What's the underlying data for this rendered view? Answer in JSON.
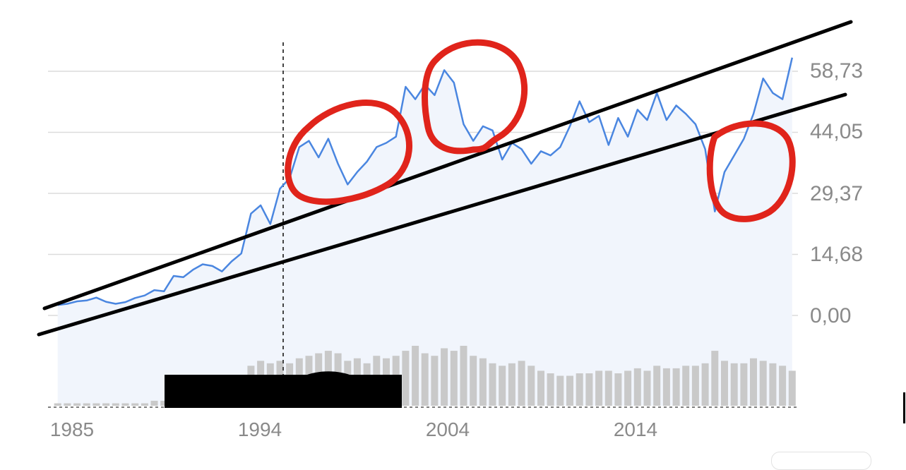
{
  "chart_data": {
    "type": "line",
    "title": "",
    "xlabel": "",
    "ylabel": "",
    "xlim": [
      1984.5,
      2023.3
    ],
    "ylim": [
      0,
      58.73
    ],
    "y_ticks": [
      "58,73",
      "44,05",
      "29,37",
      "14,68",
      "0,00"
    ],
    "y_tick_values": [
      58.73,
      44.05,
      29.37,
      14.68,
      0.0
    ],
    "x_ticks": [
      "1985",
      "1994",
      "2004",
      "2014"
    ],
    "x_tick_values": [
      1985,
      1994,
      2004,
      2014
    ],
    "grid": "horizontal",
    "series": [
      {
        "color": "#4a86e0",
        "x": [
          1985,
          1985.5,
          1986,
          1986.5,
          1987,
          1987.5,
          1988,
          1988.5,
          1989,
          1989.5,
          1990,
          1990.5,
          1991,
          1991.5,
          1992,
          1992.5,
          1993,
          1993.5,
          1994,
          1994.5,
          1995,
          1995.5,
          1996,
          1996.5,
          1997,
          1997.5,
          1998,
          1998.5,
          1999,
          1999.5,
          2000,
          2000.5,
          2001,
          2001.5,
          2002,
          2002.5,
          2003,
          2003.5,
          2004,
          2004.5,
          2005,
          2005.5,
          2006,
          2006.5,
          2007,
          2007.5,
          2008,
          2008.5,
          2009,
          2009.5,
          2010,
          2010.5,
          2011,
          2011.5,
          2012,
          2012.5,
          2013,
          2013.5,
          2014,
          2014.5,
          2015,
          2015.5,
          2016,
          2016.5,
          2017,
          2017.5,
          2018,
          2018.5,
          2019,
          2019.5,
          2020,
          2020.5,
          2021,
          2021.5,
          2022,
          2022.5,
          2023
        ],
        "y": [
          2.5,
          2.8,
          3.4,
          3.6,
          4.3,
          3.3,
          2.8,
          3.2,
          4.2,
          4.8,
          6.1,
          5.8,
          9.5,
          9.2,
          11.0,
          12.3,
          11.9,
          10.6,
          13.0,
          14.9,
          24.5,
          26.5,
          22.0,
          30.5,
          33.0,
          40.5,
          42.0,
          38.0,
          42.5,
          36.5,
          31.5,
          34.5,
          37.0,
          40.5,
          41.5,
          43.0,
          55.0,
          52.0,
          55.5,
          53.0,
          59.0,
          56.0,
          46.0,
          42.0,
          45.5,
          44.5,
          37.5,
          41.5,
          40.0,
          36.5,
          39.5,
          38.5,
          40.5,
          45.5,
          51.5,
          46.5,
          48.0,
          41.0,
          47.5,
          43.0,
          49.5,
          47.0,
          53.5,
          47.0,
          50.5,
          48.5,
          46.0,
          40.0,
          25.0,
          34.5,
          38.5,
          42.5,
          48.5,
          57.0,
          53.5,
          52.0,
          62.0
        ]
      }
    ],
    "volume_values": [
      1,
      1,
      1,
      1,
      1,
      1,
      1,
      1,
      1,
      1,
      2,
      2,
      2,
      2,
      2,
      3,
      3,
      4,
      4,
      5,
      16,
      18,
      17,
      18,
      17,
      19,
      20,
      21,
      22,
      21,
      18,
      19,
      17,
      20,
      19,
      20,
      22,
      24,
      21,
      20,
      23,
      22,
      24,
      20,
      19,
      17,
      16,
      17,
      18,
      16,
      14,
      13,
      12,
      12,
      13,
      13,
      14,
      14,
      13,
      14,
      15,
      14,
      16,
      15,
      15,
      16,
      16,
      17,
      22,
      18,
      17,
      17,
      19,
      18,
      17,
      16,
      14
    ]
  }
}
